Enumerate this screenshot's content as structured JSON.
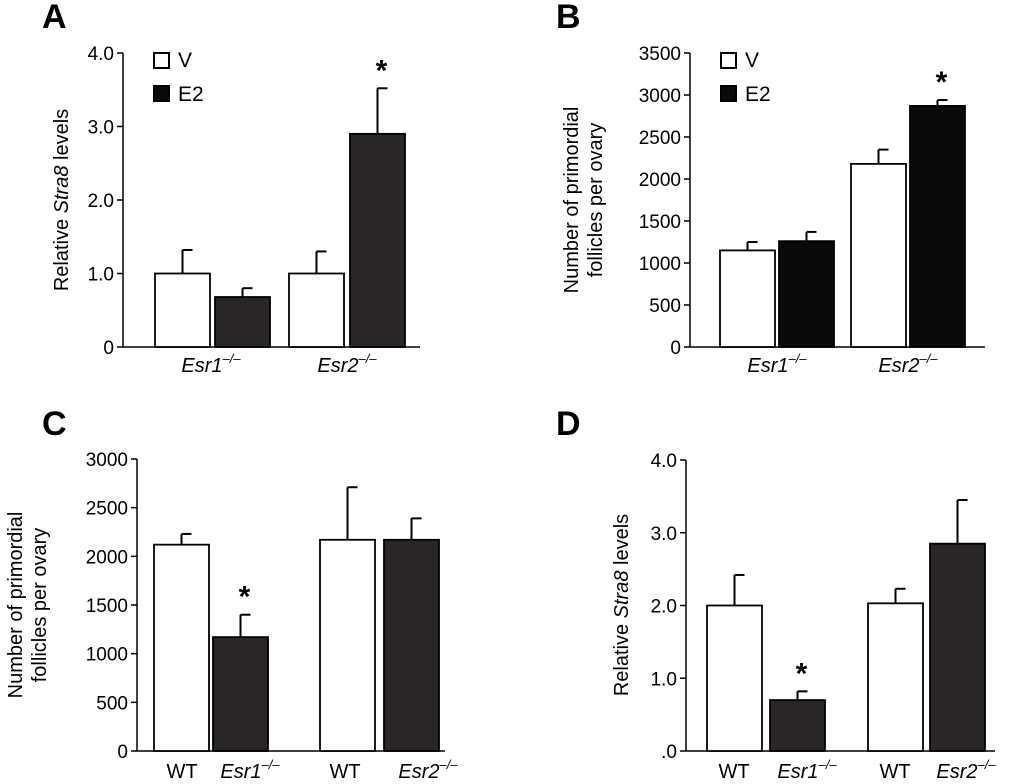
{
  "colors": {
    "vehicle": "#ffffff",
    "e2": "#2b2626",
    "wt": "#ffffff",
    "ko": "#2b2626",
    "e2_black": "#0a0a0a",
    "axis": "#000000"
  },
  "chart_data": [
    {
      "panel": "A",
      "type": "bar",
      "ylabel_prefix": "Relative ",
      "ylabel_italic": "Stra8",
      "ylabel_suffix": " levels",
      "ylim": [
        0,
        4.0
      ],
      "yticks": [
        0,
        1.0,
        2.0,
        3.0,
        4.0
      ],
      "ytick_labels": [
        "0",
        "1.0",
        "2.0",
        "3.0",
        "4.0"
      ],
      "groups": [
        "Esr1",
        "Esr2"
      ],
      "group_superscript": "–/–",
      "legend": [
        "V",
        "E2"
      ],
      "series": [
        {
          "name": "V",
          "values": [
            1.0,
            1.0
          ],
          "errors": [
            0.32,
            0.3
          ]
        },
        {
          "name": "E2",
          "values": [
            0.68,
            2.9
          ],
          "errors": [
            0.12,
            0.62
          ]
        }
      ],
      "significance": [
        {
          "series": "E2",
          "group": "Esr2",
          "label": "*"
        }
      ]
    },
    {
      "panel": "B",
      "type": "bar",
      "ylabel_lines": [
        "Number of primordial",
        "follicles per ovary"
      ],
      "ylim": [
        0,
        3500
      ],
      "yticks": [
        0,
        500,
        1000,
        1500,
        2000,
        2500,
        3000,
        3500
      ],
      "ytick_labels": [
        "0",
        "500",
        "1000",
        "1500",
        "2000",
        "2500",
        "3000",
        "3500"
      ],
      "groups": [
        "Esr1",
        "Esr2"
      ],
      "group_superscript": "–/–",
      "legend": [
        "V",
        "E2"
      ],
      "series": [
        {
          "name": "V",
          "values": [
            1150,
            2180
          ],
          "errors": [
            100,
            170
          ]
        },
        {
          "name": "E2",
          "values": [
            1260,
            2870
          ],
          "errors": [
            110,
            70
          ]
        }
      ],
      "significance": [
        {
          "series": "E2",
          "group": "Esr2",
          "label": "*"
        }
      ]
    },
    {
      "panel": "C",
      "type": "bar",
      "ylabel_lines": [
        "Number of primordial",
        "follicles per ovary"
      ],
      "ylim": [
        0,
        3000
      ],
      "yticks": [
        0,
        500,
        1000,
        1500,
        2000,
        2500,
        3000
      ],
      "ytick_labels": [
        "0",
        "500",
        "1000",
        "1500",
        "2000",
        "2500",
        "3000"
      ],
      "categories": [
        "WT",
        "Esr1",
        "WT",
        "Esr2"
      ],
      "category_superscript": [
        "",
        "–/–",
        "",
        "–/–"
      ],
      "values": [
        2120,
        1170,
        2170,
        2170
      ],
      "errors": [
        110,
        230,
        540,
        220
      ],
      "significance": [
        {
          "index": 1,
          "label": "*"
        }
      ]
    },
    {
      "panel": "D",
      "type": "bar",
      "ylabel_prefix": "Relative ",
      "ylabel_italic": "Stra8",
      "ylabel_suffix": " levels",
      "ylim": [
        0,
        4.0
      ],
      "yticks": [
        0,
        1.0,
        2.0,
        3.0,
        4.0
      ],
      "ytick_labels": [
        ".0",
        "1.0",
        "2.0",
        "3.0",
        "4.0"
      ],
      "categories": [
        "WT",
        "Esr1",
        "WT",
        "Esr2"
      ],
      "category_superscript": [
        "",
        "–/–",
        "",
        "–/–"
      ],
      "values": [
        2.0,
        0.7,
        2.03,
        2.85
      ],
      "errors": [
        0.42,
        0.12,
        0.2,
        0.6
      ],
      "significance": [
        {
          "index": 1,
          "label": "*"
        }
      ]
    }
  ]
}
